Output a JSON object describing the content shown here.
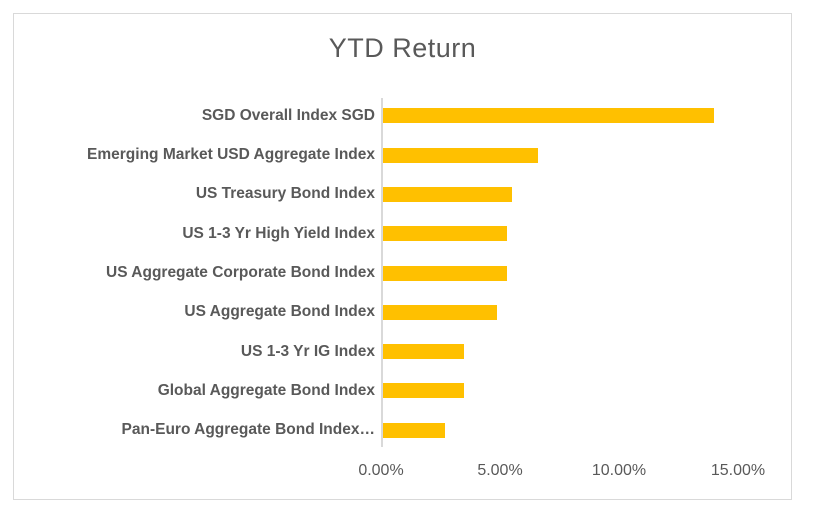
{
  "chart": {
    "title": "YTD Return"
  },
  "chart_data": {
    "type": "bar",
    "orientation": "horizontal",
    "title": "YTD Return",
    "categories": [
      "SGD Overall Index SGD",
      "Emerging Market USD Aggregate Index",
      "US Treasury Bond Index",
      "US 1-3 Yr High Yield Index",
      "US Aggregate Corporate Bond Index",
      "US Aggregate Bond Index",
      "US 1-3 Yr IG Index",
      "Global Aggregate Bond Index",
      "Pan-Euro Aggregate Bond Index…"
    ],
    "values": [
      13.9,
      6.5,
      5.4,
      5.2,
      5.2,
      4.8,
      3.4,
      3.4,
      2.6
    ],
    "unit": "%",
    "xlabel": "",
    "ylabel": "",
    "x_ticks": [
      "0.00%",
      "5.00%",
      "10.00%",
      "15.00%"
    ],
    "x_tick_values": [
      0,
      5,
      10,
      15
    ],
    "xlim": [
      0,
      15
    ],
    "grid": false,
    "legend": "none",
    "bar_color": "#FFC000",
    "axis_line_color": "#D9D9D9",
    "text_color": "#595959",
    "border_color": "#D9D9D9",
    "background_color": "#FFFFFF"
  }
}
